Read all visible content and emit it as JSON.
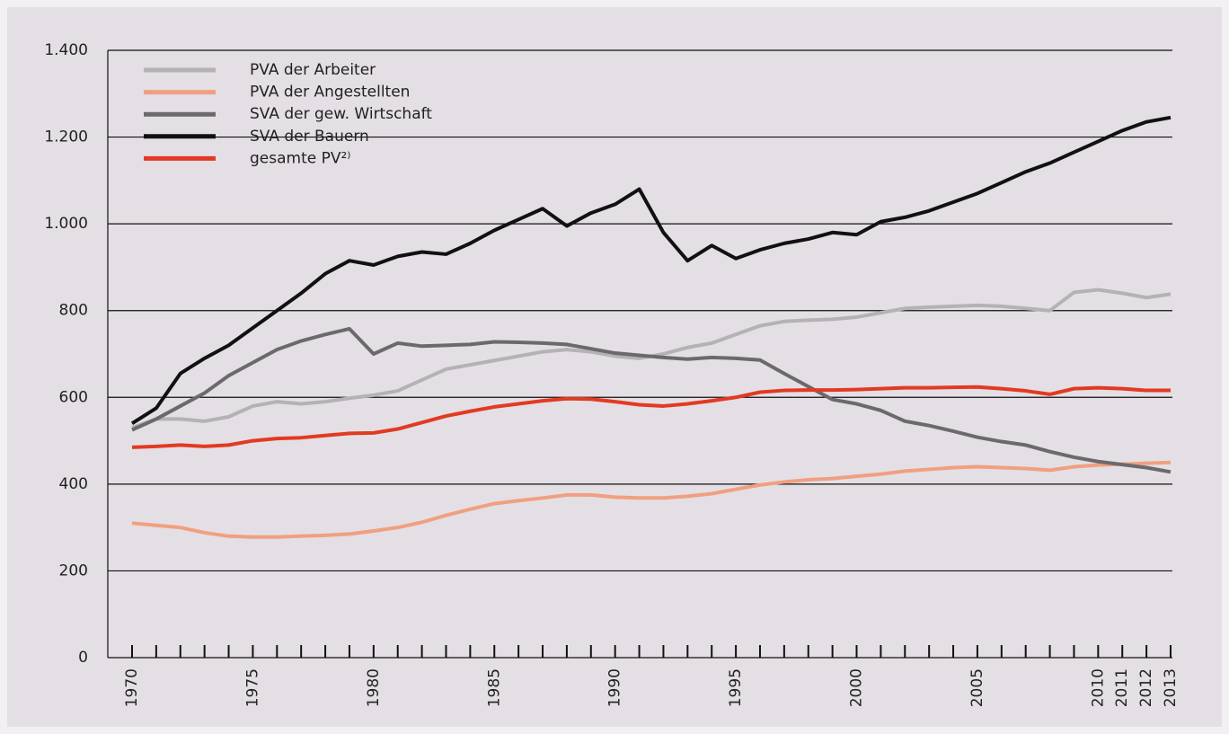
{
  "chart_data": {
    "type": "line",
    "x": [
      1970,
      1971,
      1972,
      1973,
      1974,
      1975,
      1976,
      1977,
      1978,
      1979,
      1980,
      1981,
      1982,
      1983,
      1984,
      1985,
      1986,
      1987,
      1988,
      1989,
      1990,
      1991,
      1992,
      1993,
      1994,
      1995,
      1996,
      1997,
      1998,
      1999,
      2000,
      2001,
      2002,
      2003,
      2004,
      2005,
      2006,
      2007,
      2008,
      2009,
      2010,
      2011,
      2012,
      2013
    ],
    "xlim": [
      1970,
      2013
    ],
    "xticks": [
      1970,
      1975,
      1980,
      1985,
      1990,
      1995,
      2000,
      2005,
      2010,
      2011,
      2012,
      2013
    ],
    "ylim": [
      0,
      1400
    ],
    "yticks": [
      0,
      200,
      400,
      600,
      800,
      {
        "value": 1000,
        "label": "1.000"
      },
      {
        "value": 1200,
        "label": "1.200"
      },
      {
        "value": 1400,
        "label": "1.400"
      }
    ],
    "grid": true,
    "legend": "top-left",
    "series": [
      {
        "name": "PVA der Arbeiter",
        "color": "#b4b2b5",
        "values": [
          530,
          550,
          550,
          545,
          555,
          580,
          590,
          585,
          590,
          598,
          605,
          615,
          640,
          665,
          675,
          685,
          695,
          705,
          710,
          705,
          695,
          690,
          700,
          715,
          725,
          745,
          765,
          775,
          778,
          780,
          785,
          795,
          805,
          808,
          810,
          812,
          810,
          805,
          800,
          842,
          848,
          840,
          830,
          838
        ]
      },
      {
        "name": "PVA der Angestellten",
        "color": "#f0a080",
        "values": [
          310,
          305,
          300,
          288,
          280,
          278,
          278,
          280,
          282,
          285,
          292,
          300,
          312,
          328,
          342,
          355,
          362,
          368,
          375,
          375,
          370,
          368,
          368,
          372,
          378,
          388,
          398,
          405,
          410,
          413,
          418,
          423,
          430,
          434,
          438,
          440,
          438,
          436,
          432,
          440,
          444,
          446,
          448,
          450
        ]
      },
      {
        "name": "SVA der gew. Wirtschaft",
        "color": "#6b696c",
        "values": [
          525,
          550,
          580,
          610,
          650,
          680,
          710,
          730,
          745,
          758,
          700,
          725,
          718,
          720,
          722,
          728,
          727,
          725,
          722,
          712,
          702,
          697,
          692,
          688,
          692,
          690,
          686,
          655,
          625,
          595,
          585,
          570,
          545,
          535,
          522,
          508,
          498,
          490,
          475,
          462,
          452,
          445,
          438,
          428
        ]
      },
      {
        "name": "SVA der Bauern",
        "color": "#111111",
        "values": [
          540,
          575,
          655,
          690,
          720,
          760,
          800,
          840,
          885,
          915,
          905,
          925,
          935,
          930,
          955,
          985,
          1010,
          1035,
          995,
          1025,
          1045,
          1080,
          980,
          915,
          950,
          920,
          940,
          955,
          965,
          980,
          975,
          1005,
          1015,
          1030,
          1050,
          1070,
          1095,
          1120,
          1140,
          1165,
          1190,
          1215,
          1235,
          1245
        ]
      },
      {
        "name": "gesamte PV²⁾",
        "color": "#e23a22",
        "values": [
          485,
          487,
          490,
          487,
          490,
          500,
          505,
          507,
          512,
          517,
          518,
          527,
          542,
          557,
          568,
          578,
          585,
          592,
          597,
          596,
          590,
          583,
          580,
          585,
          592,
          600,
          612,
          616,
          617,
          617,
          618,
          620,
          622,
          622,
          623,
          624,
          620,
          615,
          607,
          620,
          622,
          620,
          616,
          616
        ]
      }
    ]
  }
}
